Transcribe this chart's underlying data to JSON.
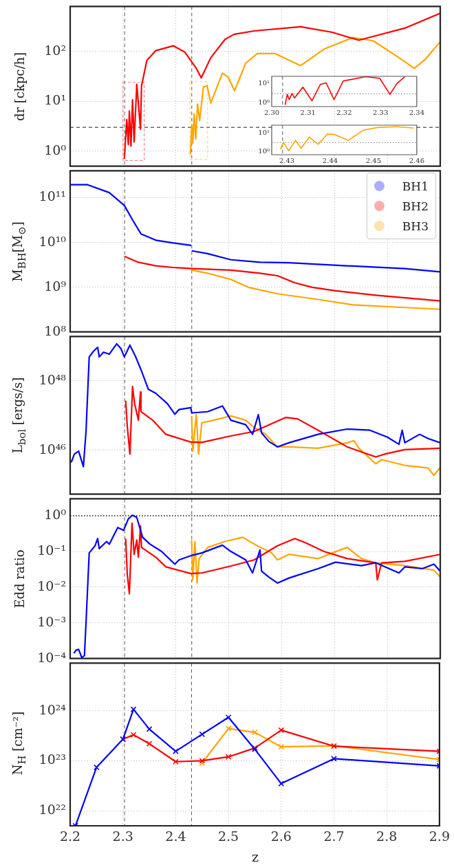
{
  "chart_data": [
    {
      "type": "line",
      "ylabel": "dr [ckpc/h]",
      "log": "y",
      "grid": true,
      "tick_labels": "y",
      "xlim": [
        2.2,
        2.9
      ],
      "xticks": [
        2.2,
        2.3,
        2.4,
        2.5,
        2.6,
        2.7,
        2.8,
        2.9
      ],
      "ylim": [
        0.5,
        800
      ],
      "yticks": [
        {
          "value": 1,
          "label": "10⁰"
        },
        {
          "value": 10,
          "label": "10¹"
        },
        {
          "value": 100,
          "label": "10²"
        }
      ],
      "ref_lines": [
        {
          "axis": "x",
          "value": 2.303,
          "color": "#555555",
          "line_style": "dashed"
        },
        {
          "axis": "x",
          "value": 2.43,
          "color": "#555555",
          "line_style": "dashed"
        },
        {
          "axis": "y",
          "value": 3,
          "color": "#666666",
          "line_style": "dashed"
        }
      ],
      "series": [
        {
          "color": "#ff0000",
          "x": [
            2.3025,
            2.307,
            2.31,
            2.312,
            2.315,
            2.318,
            2.321,
            2.326,
            2.333,
            2.335,
            2.345,
            2.362,
            2.395,
            2.417,
            2.439,
            2.448,
            2.466,
            2.493,
            2.51,
            2.548,
            2.636,
            2.696,
            2.746,
            2.778,
            2.833,
            2.9
          ],
          "values": [
            0.7,
            4.3,
            1.35,
            6.4,
            1.26,
            10.7,
            1.53,
            22,
            2.75,
            20.5,
            66,
            104,
            130,
            97,
            45,
            29.5,
            75,
            175,
            221,
            258,
            313,
            242,
            168,
            207,
            294,
            584
          ]
        },
        {
          "color": "#ffa500",
          "x": [
            2.4275,
            2.43,
            2.432,
            2.4345,
            2.4375,
            2.441,
            2.445,
            2.452,
            2.459,
            2.466,
            2.488,
            2.499,
            2.511,
            2.532,
            2.554,
            2.587,
            2.636,
            2.68,
            2.735,
            2.773,
            2.822,
            2.851,
            2.872,
            2.9
          ],
          "values": [
            0.86,
            3.3,
            1.44,
            5.6,
            1.75,
            8.8,
            4.1,
            19.3,
            20.5,
            9.2,
            36.8,
            30.3,
            16.3,
            58,
            91,
            91,
            52,
            111,
            191,
            164,
            75,
            46,
            70,
            157
          ]
        }
      ]
    },
    {
      "type": "line",
      "ylabel": "M$_{BH}$[M$_{⊙}$]",
      "log": "y",
      "grid": true,
      "tick_labels": "y",
      "legend": "top right",
      "xlim": [
        2.2,
        2.9
      ],
      "xticks": [
        2.2,
        2.3,
        2.4,
        2.5,
        2.6,
        2.7,
        2.8,
        2.9
      ],
      "ylim": [
        100000000.0,
        400000000000.0
      ],
      "yticks": [
        {
          "value": 100000000.0,
          "label": "10⁸"
        },
        {
          "value": 1000000000.0,
          "label": "10⁹"
        },
        {
          "value": 10000000000.0,
          "label": "10¹⁰"
        },
        {
          "value": 100000000000.0,
          "label": "10¹¹"
        }
      ],
      "ref_lines": [
        {
          "axis": "x",
          "value": 2.303,
          "color": "#555555",
          "line_style": "dashed"
        },
        {
          "axis": "x",
          "value": 2.43,
          "color": "#555555",
          "line_style": "dashed"
        }
      ],
      "series": [
        {
          "name": "BH1",
          "color": "#0000ff",
          "x": [
            2.2,
            2.233,
            2.274,
            2.3025,
            2.318,
            2.334,
            2.362,
            2.395,
            2.429,
            2.4295,
            2.43,
            2.46,
            2.504,
            2.559,
            2.614,
            2.724,
            2.833,
            2.9
          ],
          "values": [
            195000000000.0,
            195000000000.0,
            130000000000.0,
            67000000000.0,
            32000000000.0,
            15500000000.0,
            11200000000.0,
            9700000000.0,
            8600000000.0,
            null,
            6500000000.0,
            5600000000.0,
            4100000000.0,
            3600000000.0,
            3500000000.0,
            3000000000.0,
            2600000000.0,
            2200000000.0
          ]
        },
        {
          "name": "BH2",
          "color": "#ff0000",
          "x": [
            2.3025,
            2.329,
            2.362,
            2.395,
            2.43,
            2.504,
            2.559,
            2.592,
            2.625,
            2.658,
            2.702,
            2.778,
            2.9
          ],
          "values": [
            4900000000.0,
            3600000000.0,
            3000000000.0,
            2750000000.0,
            2600000000.0,
            2400000000.0,
            2050000000.0,
            1800000000.0,
            1250000000.0,
            990000000.0,
            830000000.0,
            660000000.0,
            490000000.0
          ]
        },
        {
          "name": "BH3",
          "color": "#ffa500",
          "x": [
            2.43,
            2.46,
            2.504,
            2.537,
            2.592,
            2.669,
            2.735,
            2.833,
            2.9
          ],
          "values": [
            2400000000.0,
            2050000000.0,
            1490000000.0,
            990000000.0,
            710000000.0,
            530000000.0,
            400000000.0,
            350000000.0,
            320000000.0
          ]
        }
      ]
    },
    {
      "type": "line",
      "ylabel": "L$_{bol}$ [ergs/s]",
      "log": "y",
      "grid": true,
      "tick_labels": "y",
      "xlim": [
        2.2,
        2.9
      ],
      "xticks": [
        2.2,
        2.3,
        2.4,
        2.5,
        2.6,
        2.7,
        2.8,
        2.9
      ],
      "ylim": [
        5.5e+44,
        1.9e+49
      ],
      "yticks": [
        {
          "value": 1e+46,
          "label": "10⁴⁶"
        },
        {
          "value": 1e+48,
          "label": "10⁴⁸"
        }
      ],
      "ref_lines": [
        {
          "axis": "x",
          "value": 2.303,
          "color": "#555555",
          "line_style": "dashed"
        },
        {
          "axis": "x",
          "value": 2.43,
          "color": "#555555",
          "line_style": "dashed"
        }
      ],
      "series": [
        {
          "color": "#0000ff",
          "x": [
            2.202,
            2.208,
            2.216,
            2.225,
            2.23,
            2.236,
            2.244,
            2.252,
            2.255,
            2.263,
            2.274,
            2.288,
            2.296,
            2.3025,
            2.313,
            2.323,
            2.334,
            2.348,
            2.362,
            2.384,
            2.398,
            2.406,
            2.428,
            2.43,
            2.46,
            2.488,
            2.504,
            2.532,
            2.545,
            2.556,
            2.562,
            2.576,
            2.592,
            2.614,
            2.669,
            2.724,
            2.767,
            2.8,
            2.822,
            2.828,
            2.833,
            2.861,
            2.877,
            2.9
          ],
          "values": [
            4.5e+45,
            7.8e+45,
            9.5e+45,
            3.4e+45,
            3.5e+46,
            4.9e+48,
            7.1e+48,
            9.3e+48,
            4.9e+48,
            6.7e+48,
            5.9e+48,
            1.17e+49,
            8.5e+48,
            4.9e+48,
            1.07e+49,
            5.3e+48,
            2.1e+48,
            5.7e+47,
            4.4e+47,
            2.2e+47,
            1.1e+47,
            1.5e+47,
            1.7e+47,
            1.2e+47,
            1.3e+47,
            1.9e+47,
            7.4e+46,
            5.5e+46,
            2.9e+46,
            1.07e+47,
            3.2e+46,
            1.8e+46,
            1.26e+46,
            1.66e+46,
            2.9e+46,
            4.1e+46,
            3.8e+46,
            2.4e+46,
            1.5e+46,
            3.8e+46,
            1.66e+46,
            2.9e+46,
            2.2e+46,
            1.66e+46
          ]
        },
        {
          "color": "#ff0000",
          "x": [
            2.305,
            2.308,
            2.313,
            2.318,
            2.322,
            2.329,
            2.333,
            2.334,
            2.356,
            2.381,
            2.428,
            2.449,
            2.504,
            2.548,
            2.608,
            2.63,
            2.669,
            2.724,
            2.778,
            2.795,
            2.833,
            2.9
          ],
          "values": [
            2.7e+47,
            5e+46,
            7.8e+45,
            6.9e+47,
            2.2e+47,
            7.4e+46,
            4.8e+47,
            1.3e+47,
            7.4e+46,
            2.9e+46,
            1.74e+46,
            1.7e+46,
            2.6e+46,
            3.5e+46,
            8.9e+46,
            8.1e+46,
            3.8e+46,
            1.26e+46,
            6.5e+45,
            7.8e+45,
            1.05e+46,
            1.15e+46
          ]
        },
        {
          "color": "#ffa500",
          "x": [
            2.4297,
            2.432,
            2.4385,
            2.443,
            2.449,
            2.471,
            2.504,
            2.532,
            2.548,
            2.57,
            2.592,
            2.614,
            2.669,
            2.724,
            2.737,
            2.746,
            2.778,
            2.789,
            2.833,
            2.877,
            2.888,
            2.9
          ],
          "values": [
            9.8e+46,
            9.5e+45,
            1.07e+47,
            7.8e+45,
            6.2e+46,
            7.4e+46,
            9.8e+46,
            7.4e+46,
            4.6e+46,
            2.9e+46,
            1.26e+46,
            1.26e+46,
            1.15e+46,
            1.66e+46,
            1.9e+46,
            1.15e+46,
            4.1e+45,
            5.4e+45,
            3.7e+45,
            3.1e+45,
            1.9e+45,
            3.2e+45
          ]
        }
      ]
    },
    {
      "type": "line",
      "ylabel": "Edd ratio",
      "log": "y",
      "grid": true,
      "tick_labels": "y",
      "xlim": [
        2.2,
        2.9
      ],
      "xticks": [
        2.2,
        2.3,
        2.4,
        2.5,
        2.6,
        2.7,
        2.8,
        2.9
      ],
      "ylim": [
        0.0001,
        3
      ],
      "yticks": [
        {
          "value": 0.0001,
          "label": "10⁻⁴"
        },
        {
          "value": 0.001,
          "label": "10⁻³"
        },
        {
          "value": 0.01,
          "label": "10⁻²"
        },
        {
          "value": 0.1,
          "label": "10⁻¹"
        },
        {
          "value": 1,
          "label": "10⁰"
        }
      ],
      "ref_lines": [
        {
          "axis": "x",
          "value": 2.303,
          "color": "#555555",
          "line_style": "dashed"
        },
        {
          "axis": "x",
          "value": 2.43,
          "color": "#555555",
          "line_style": "dashed"
        },
        {
          "axis": "y",
          "value": 1,
          "color": "#333333",
          "line_style": "dotted"
        }
      ],
      "series": [
        {
          "color": "#0000ff",
          "x": [
            2.207,
            2.211,
            2.216,
            2.222,
            2.227,
            2.23,
            2.236,
            2.247,
            2.252,
            2.255,
            2.269,
            2.274,
            2.29,
            2.301,
            2.31,
            2.318,
            2.326,
            2.337,
            2.351,
            2.373,
            2.398,
            2.406,
            2.428,
            2.449,
            2.488,
            2.504,
            2.532,
            2.545,
            2.559,
            2.562,
            2.576,
            2.592,
            2.614,
            2.669,
            2.702,
            2.751,
            2.778,
            2.822,
            2.833,
            2.866,
            2.888,
            2.9
          ],
          "values": [
            0.00014,
            0.00017,
            0.00018,
            0.000105,
            0.00012,
            0.001,
            0.091,
            0.144,
            0.23,
            0.12,
            0.19,
            0.16,
            0.47,
            0.39,
            0.82,
            1.04,
            0.9,
            0.25,
            0.16,
            0.1,
            0.044,
            0.058,
            0.076,
            0.091,
            0.15,
            0.1,
            0.058,
            0.025,
            0.11,
            0.028,
            0.019,
            0.013,
            0.018,
            0.033,
            0.05,
            0.04,
            0.048,
            0.025,
            0.037,
            0.033,
            0.044,
            0.028
          ]
        },
        {
          "color": "#ff0000",
          "x": [
            2.305,
            2.308,
            2.312,
            2.317,
            2.321,
            2.326,
            2.329,
            2.333,
            2.335,
            2.362,
            2.381,
            2.428,
            2.449,
            2.504,
            2.548,
            2.592,
            2.625,
            2.647,
            2.68,
            2.724,
            2.778,
            2.781,
            2.789,
            2.833,
            2.9
          ],
          "values": [
            0.23,
            0.023,
            0.0065,
            0.62,
            0.083,
            0.21,
            0.069,
            0.52,
            0.13,
            0.069,
            0.037,
            0.024,
            0.025,
            0.039,
            0.058,
            0.144,
            0.23,
            0.17,
            0.1,
            0.063,
            0.048,
            0.016,
            0.048,
            0.053,
            0.083
          ]
        },
        {
          "color": "#ffa500",
          "x": [
            2.4297,
            2.432,
            2.436,
            2.44,
            2.444,
            2.46,
            2.493,
            2.526,
            2.554,
            2.581,
            2.592,
            2.614,
            2.669,
            2.696,
            2.724,
            2.751,
            2.778,
            2.833,
            2.888,
            2.9
          ],
          "values": [
            0.21,
            0.016,
            0.19,
            0.013,
            0.063,
            0.13,
            0.19,
            0.25,
            0.144,
            0.091,
            0.058,
            0.083,
            0.063,
            0.091,
            0.13,
            0.063,
            0.048,
            0.04,
            0.03,
            0.019
          ]
        }
      ]
    },
    {
      "type": "line",
      "ylabel": "N$_{H}$ [cm⁻²]",
      "xlabel": "z",
      "log": "y",
      "grid": true,
      "marker": "cross",
      "xlim": [
        2.2,
        2.9
      ],
      "xticks": [
        2.2,
        2.3,
        2.4,
        2.5,
        2.6,
        2.7,
        2.8,
        2.9
      ],
      "ylim": [
        5e+21,
        9e+24
      ],
      "yticks": [
        {
          "value": 1e+22,
          "label": "10²²"
        },
        {
          "value": 1e+23,
          "label": "10²³"
        },
        {
          "value": 1e+24,
          "label": "10²⁴"
        }
      ],
      "ref_lines": [
        {
          "axis": "x",
          "value": 2.303,
          "color": "#555555",
          "line_style": "dashed"
        },
        {
          "axis": "x",
          "value": 2.43,
          "color": "#555555",
          "line_style": "dashed"
        }
      ],
      "series": [
        {
          "color": "#0000ff",
          "x": [
            2.21,
            2.25,
            2.3,
            2.32,
            2.35,
            2.4,
            2.45,
            2.5,
            2.55,
            2.6,
            2.7,
            2.9
          ],
          "values": [
            5e+21,
            7.4e+22,
            2.7e+23,
            1.07e+24,
            4.3e+23,
            1.55e+23,
            3.4e+23,
            7.4e+23,
            1.7e+23,
            3.5e+22,
            1.1e+23,
            7.9e+22
          ]
        },
        {
          "color": "#ff0000",
          "x": [
            2.3,
            2.32,
            2.35,
            2.4,
            2.45,
            2.5,
            2.55,
            2.6,
            2.7,
            2.9
          ],
          "values": [
            2.7e+23,
            3.3e+23,
            2.2e+23,
            9.6e+22,
            1e+23,
            1.2e+23,
            1.8e+23,
            4.1e+23,
            1.96e+23,
            1.55e+23
          ]
        },
        {
          "color": "#ffa500",
          "x": [
            2.45,
            2.5,
            2.55,
            2.6,
            2.7,
            2.9
          ],
          "values": [
            9e+22,
            4.4e+23,
            3.7e+23,
            1.9e+23,
            2e+23,
            1.06e+23
          ]
        }
      ]
    },
    {
      "type": "line",
      "log": "y",
      "xlim": [
        2.3,
        2.34
      ],
      "xticks": [
        {
          "value": 2.3,
          "label": "2.30"
        },
        2.31,
        2.32,
        2.33,
        2.34
      ],
      "ylim": [
        0.65,
        24
      ],
      "yticks": [
        {
          "value": 1,
          "label": "10⁰"
        },
        {
          "value": 10,
          "label": "10¹"
        }
      ],
      "ref_lines": [
        {
          "axis": "x",
          "value": 2.303,
          "color": "#555555",
          "line_style": "dashed"
        },
        {
          "axis": "y",
          "value": 3,
          "color": "#777777",
          "line_style": "dotted"
        }
      ],
      "series": [
        {
          "color": "#ff0000",
          "x": [
            2.3037,
            2.3043,
            2.3048,
            2.3056,
            2.3063,
            2.3086,
            2.3111,
            2.3134,
            2.315,
            2.3172,
            2.3197,
            2.3259,
            2.3298,
            2.3326,
            2.3345,
            2.3367
          ],
          "values": [
            0.8,
            2.8,
            1.5,
            3.1,
            1.8,
            6.6,
            1.3,
            9.1,
            11,
            1.5,
            13.7,
            23,
            18.8,
            2.8,
            10,
            23
          ]
        }
      ]
    },
    {
      "type": "line",
      "log": "y",
      "xlim": [
        2.4265,
        2.46
      ],
      "xticks": [
        2.43,
        2.44,
        2.45,
        2.46
      ],
      "ylim": [
        0.68,
        25
      ],
      "yticks": [
        {
          "value": 1,
          "label": "10⁰"
        },
        {
          "value": 10,
          "label": "10¹"
        }
      ],
      "ref_lines": [
        {
          "axis": "x",
          "value": 2.429,
          "color": "#555555",
          "line_style": "dashed"
        },
        {
          "axis": "y",
          "value": 3,
          "color": "#777777",
          "line_style": "dotted"
        }
      ],
      "series": [
        {
          "color": "#ffa500",
          "x": [
            2.4285,
            2.4292,
            2.4304,
            2.432,
            2.4333,
            2.4352,
            2.4372,
            2.4394,
            2.441,
            2.4442,
            2.4477,
            2.451,
            2.4554,
            2.4593
          ],
          "values": [
            1.29,
            3.1,
            1.1,
            3.9,
            1.5,
            5.8,
            2.4,
            8.5,
            8.0,
            3.9,
            13.7,
            18.8,
            20.6,
            17.6
          ]
        }
      ]
    }
  ]
}
